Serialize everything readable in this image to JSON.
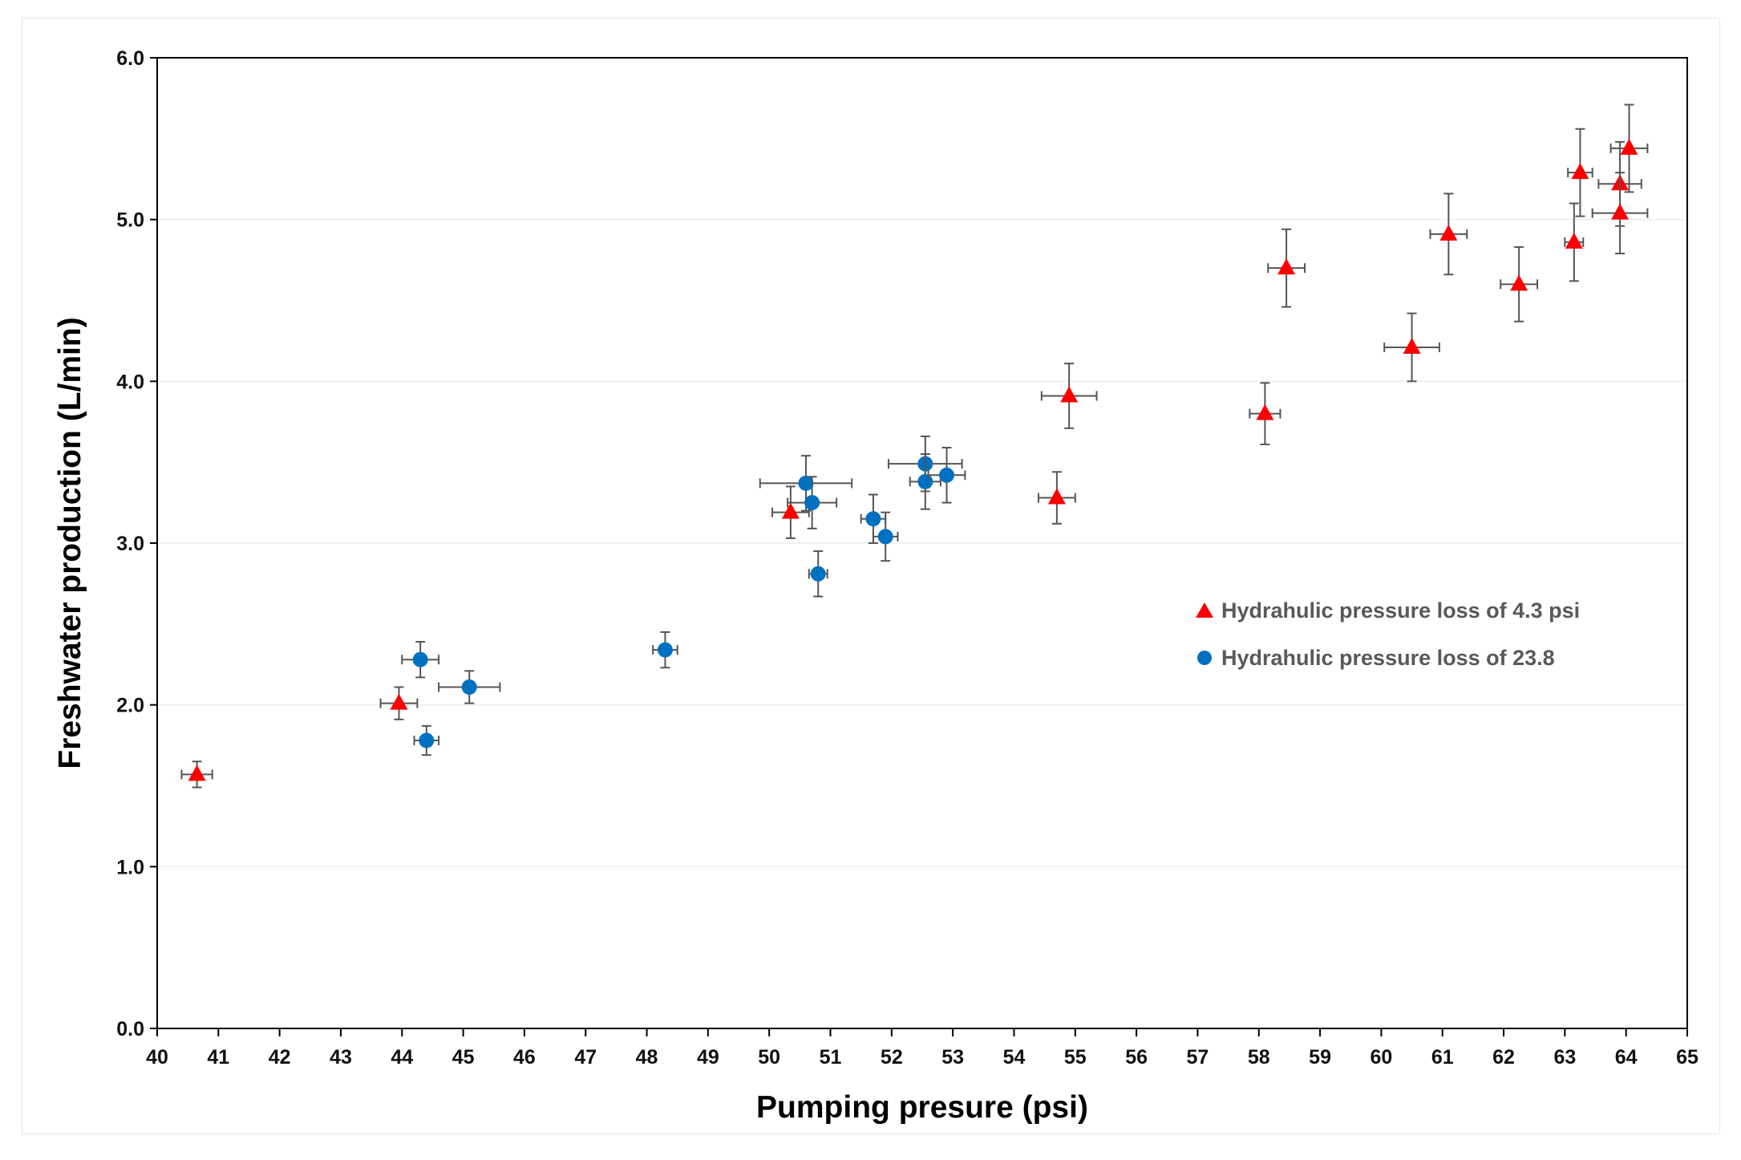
{
  "chart_data": {
    "type": "scatter",
    "title": "",
    "xlabel": "Pumping presure (psi)",
    "ylabel": "Freshwater production (L/min)",
    "xlim": [
      40,
      65
    ],
    "ylim": [
      0,
      6
    ],
    "x_ticks": [
      "40",
      "41",
      "42",
      "43",
      "44",
      "45",
      "46",
      "47",
      "48",
      "49",
      "50",
      "51",
      "52",
      "53",
      "54",
      "55",
      "56",
      "57",
      "58",
      "59",
      "60",
      "61",
      "62",
      "63",
      "64",
      "65"
    ],
    "y_ticks": [
      "0.0",
      "1.0",
      "2.0",
      "3.0",
      "4.0",
      "5.0",
      "6.0"
    ],
    "grid": "horizontal",
    "legend_position": "right-middle",
    "series": [
      {
        "name": "Hydrahulic pressure loss of 4.3 psi",
        "marker": "triangle",
        "color": "#ff0000",
        "points": [
          {
            "x": 40.65,
            "y": 1.57,
            "xerr": 0.25,
            "yerr": 0.08
          },
          {
            "x": 43.95,
            "y": 2.01,
            "xerr": 0.3,
            "yerr": 0.1
          },
          {
            "x": 50.35,
            "y": 3.19,
            "xerr": 0.3,
            "yerr": 0.16
          },
          {
            "x": 54.7,
            "y": 3.28,
            "xerr": 0.3,
            "yerr": 0.16
          },
          {
            "x": 54.9,
            "y": 3.91,
            "xerr": 0.45,
            "yerr": 0.2
          },
          {
            "x": 58.1,
            "y": 3.8,
            "xerr": 0.25,
            "yerr": 0.19
          },
          {
            "x": 58.45,
            "y": 4.7,
            "xerr": 0.3,
            "yerr": 0.24
          },
          {
            "x": 60.5,
            "y": 4.21,
            "xerr": 0.45,
            "yerr": 0.21
          },
          {
            "x": 61.1,
            "y": 4.91,
            "xerr": 0.3,
            "yerr": 0.25
          },
          {
            "x": 62.25,
            "y": 4.6,
            "xerr": 0.3,
            "yerr": 0.23
          },
          {
            "x": 63.15,
            "y": 4.86,
            "xerr": 0.15,
            "yerr": 0.24
          },
          {
            "x": 63.25,
            "y": 5.29,
            "xerr": 0.2,
            "yerr": 0.27
          },
          {
            "x": 63.9,
            "y": 5.22,
            "xerr": 0.35,
            "yerr": 0.26
          },
          {
            "x": 63.9,
            "y": 5.04,
            "xerr": 0.45,
            "yerr": 0.25
          },
          {
            "x": 64.05,
            "y": 5.44,
            "xerr": 0.3,
            "yerr": 0.27
          }
        ]
      },
      {
        "name": "Hydrahulic pressure loss of 23.8",
        "marker": "circle",
        "color": "#0070c0",
        "points": [
          {
            "x": 44.3,
            "y": 2.28,
            "xerr": 0.3,
            "yerr": 0.11
          },
          {
            "x": 44.4,
            "y": 1.78,
            "xerr": 0.2,
            "yerr": 0.09
          },
          {
            "x": 45.1,
            "y": 2.11,
            "xerr": 0.5,
            "yerr": 0.1
          },
          {
            "x": 48.3,
            "y": 2.34,
            "xerr": 0.2,
            "yerr": 0.11
          },
          {
            "x": 50.6,
            "y": 3.37,
            "xerr": 0.75,
            "yerr": 0.17
          },
          {
            "x": 50.7,
            "y": 3.25,
            "xerr": 0.4,
            "yerr": 0.16
          },
          {
            "x": 50.8,
            "y": 2.81,
            "xerr": 0.15,
            "yerr": 0.14
          },
          {
            "x": 51.7,
            "y": 3.15,
            "xerr": 0.2,
            "yerr": 0.15
          },
          {
            "x": 51.9,
            "y": 3.04,
            "xerr": 0.2,
            "yerr": 0.15
          },
          {
            "x": 52.55,
            "y": 3.49,
            "xerr": 0.6,
            "yerr": 0.17
          },
          {
            "x": 52.55,
            "y": 3.38,
            "xerr": 0.25,
            "yerr": 0.17
          },
          {
            "x": 52.9,
            "y": 3.42,
            "xerr": 0.3,
            "yerr": 0.17
          }
        ]
      }
    ]
  }
}
